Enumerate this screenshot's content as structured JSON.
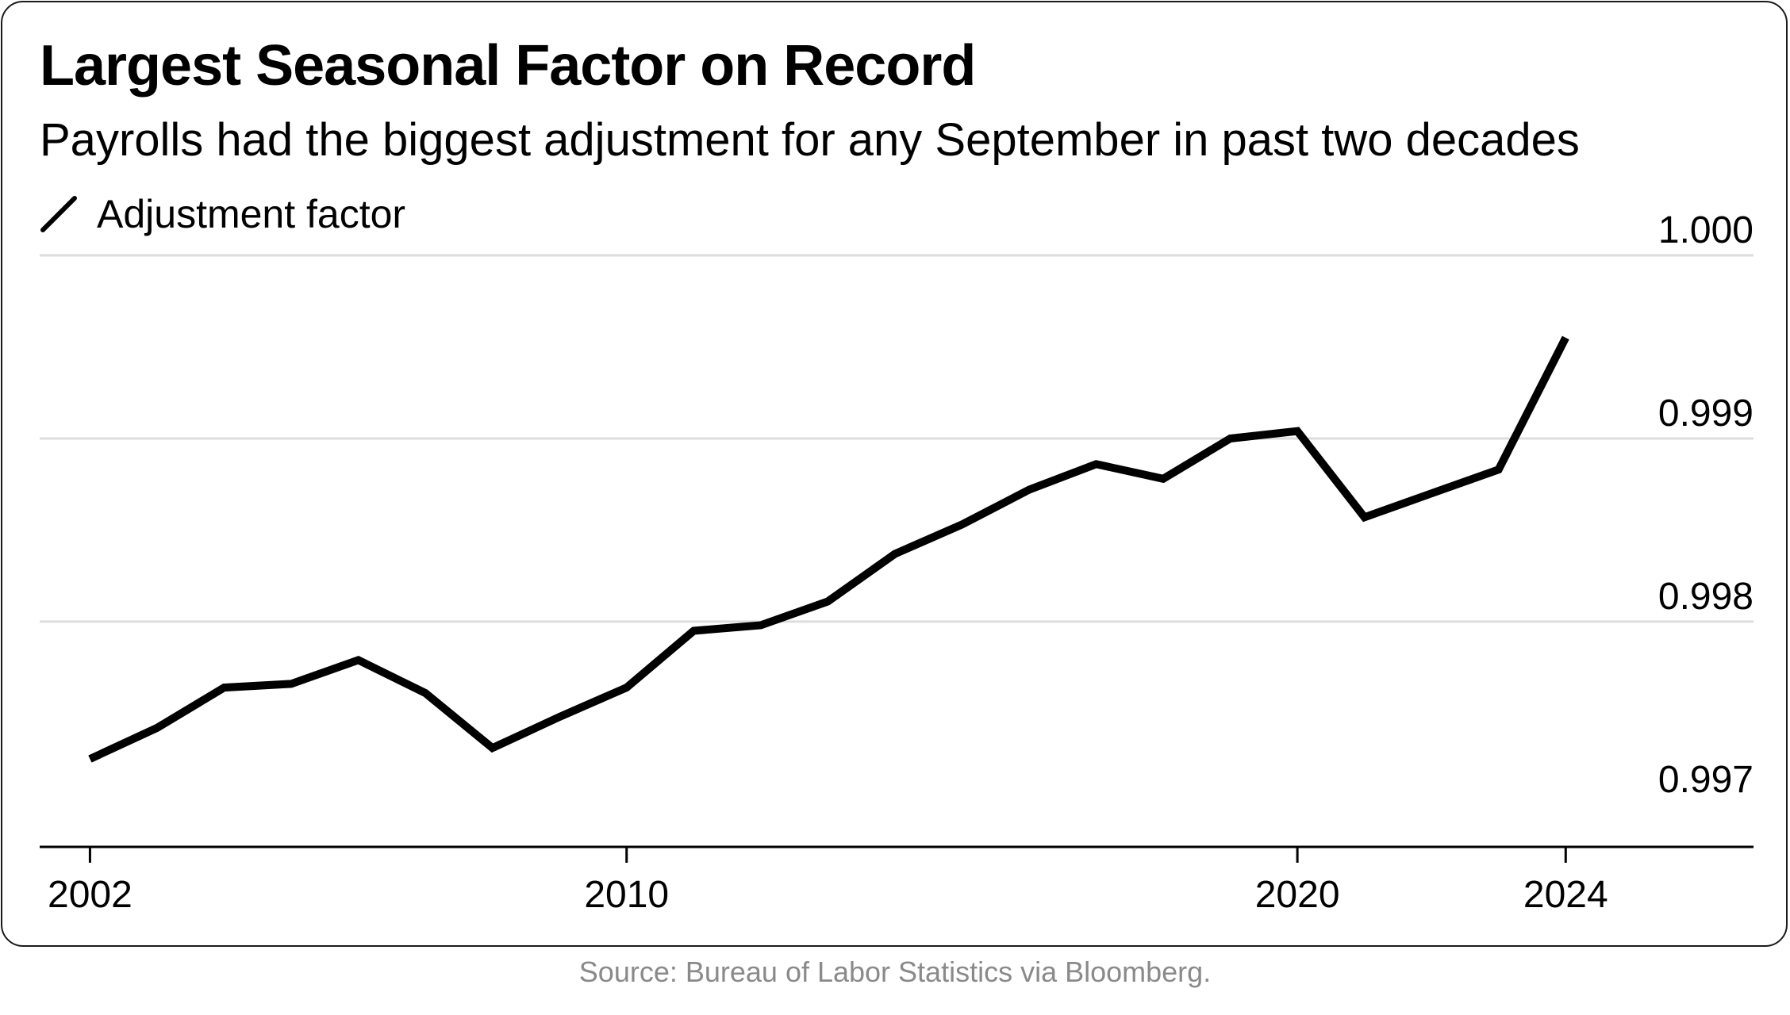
{
  "chart_data": {
    "type": "line",
    "title": "Largest Seasonal Factor on Record",
    "subtitle": "Payrolls had the biggest adjustment for any September in past two decades",
    "legend": "Adjustment factor",
    "xlabel": "",
    "ylabel": "",
    "xlim": [
      2001.25,
      2026.8
    ],
    "ylim": [
      0.99677,
      1.0
    ],
    "x_ticks": [
      2002,
      2010,
      2020,
      2024
    ],
    "x_tick_labels": [
      "2002",
      "2010",
      "2020",
      "2024"
    ],
    "y_ticks": [
      0.997,
      0.998,
      0.999,
      1.0
    ],
    "y_tick_labels": [
      "0.997",
      "0.998",
      "0.999",
      "1.000"
    ],
    "grid": true,
    "y_axis_side": "right",
    "series": [
      {
        "name": "Adjustment factor",
        "color": "#000000",
        "x": [
          2002,
          2003,
          2004,
          2005,
          2006,
          2007,
          2008,
          2009,
          2010,
          2011,
          2012,
          2013,
          2014,
          2015,
          2016,
          2017,
          2018,
          2019,
          2020,
          2021,
          2022,
          2023,
          2024
        ],
        "values": [
          0.99725,
          0.99742,
          0.99764,
          0.99766,
          0.99779,
          0.99761,
          0.99731,
          0.99748,
          0.99764,
          0.99795,
          0.99798,
          0.99811,
          0.99837,
          0.99853,
          0.99872,
          0.99886,
          0.99878,
          0.999,
          0.99904,
          0.99857,
          0.9987,
          0.99883,
          0.99955
        ]
      }
    ]
  },
  "footer": {
    "source": "Source: Bureau of Labor Statistics via Bloomberg."
  }
}
